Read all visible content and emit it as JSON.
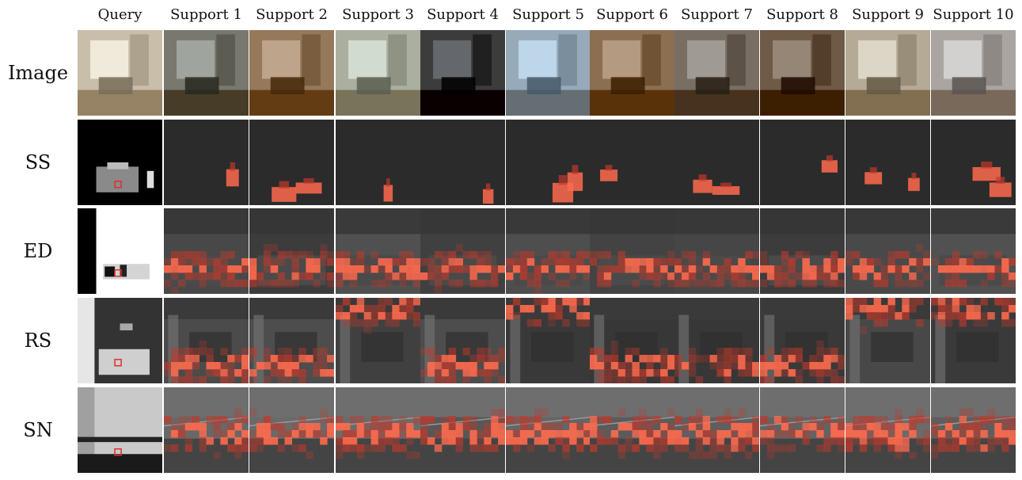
{
  "figure": {
    "columns": [
      "Query",
      "Support 1",
      "Support 2",
      "Support 3",
      "Support 4",
      "Support 5",
      "Support 6",
      "Support 7",
      "Support 8",
      "Support 9",
      "Support 10"
    ],
    "rows": [
      {
        "label": "Image",
        "kind": "rgb"
      },
      {
        "label": "SS",
        "kind": "segmentation"
      },
      {
        "label": "ED",
        "kind": "edges"
      },
      {
        "label": "RS",
        "kind": "reshading"
      },
      {
        "label": "SN",
        "kind": "normals"
      }
    ],
    "colors": {
      "heat_low": "#3a2a2a",
      "heat_mid": "#c0392b",
      "heat_high": "#ff6a4d",
      "query_marker": "#e0302a",
      "ss_background": "#2b2b2b"
    }
  }
}
